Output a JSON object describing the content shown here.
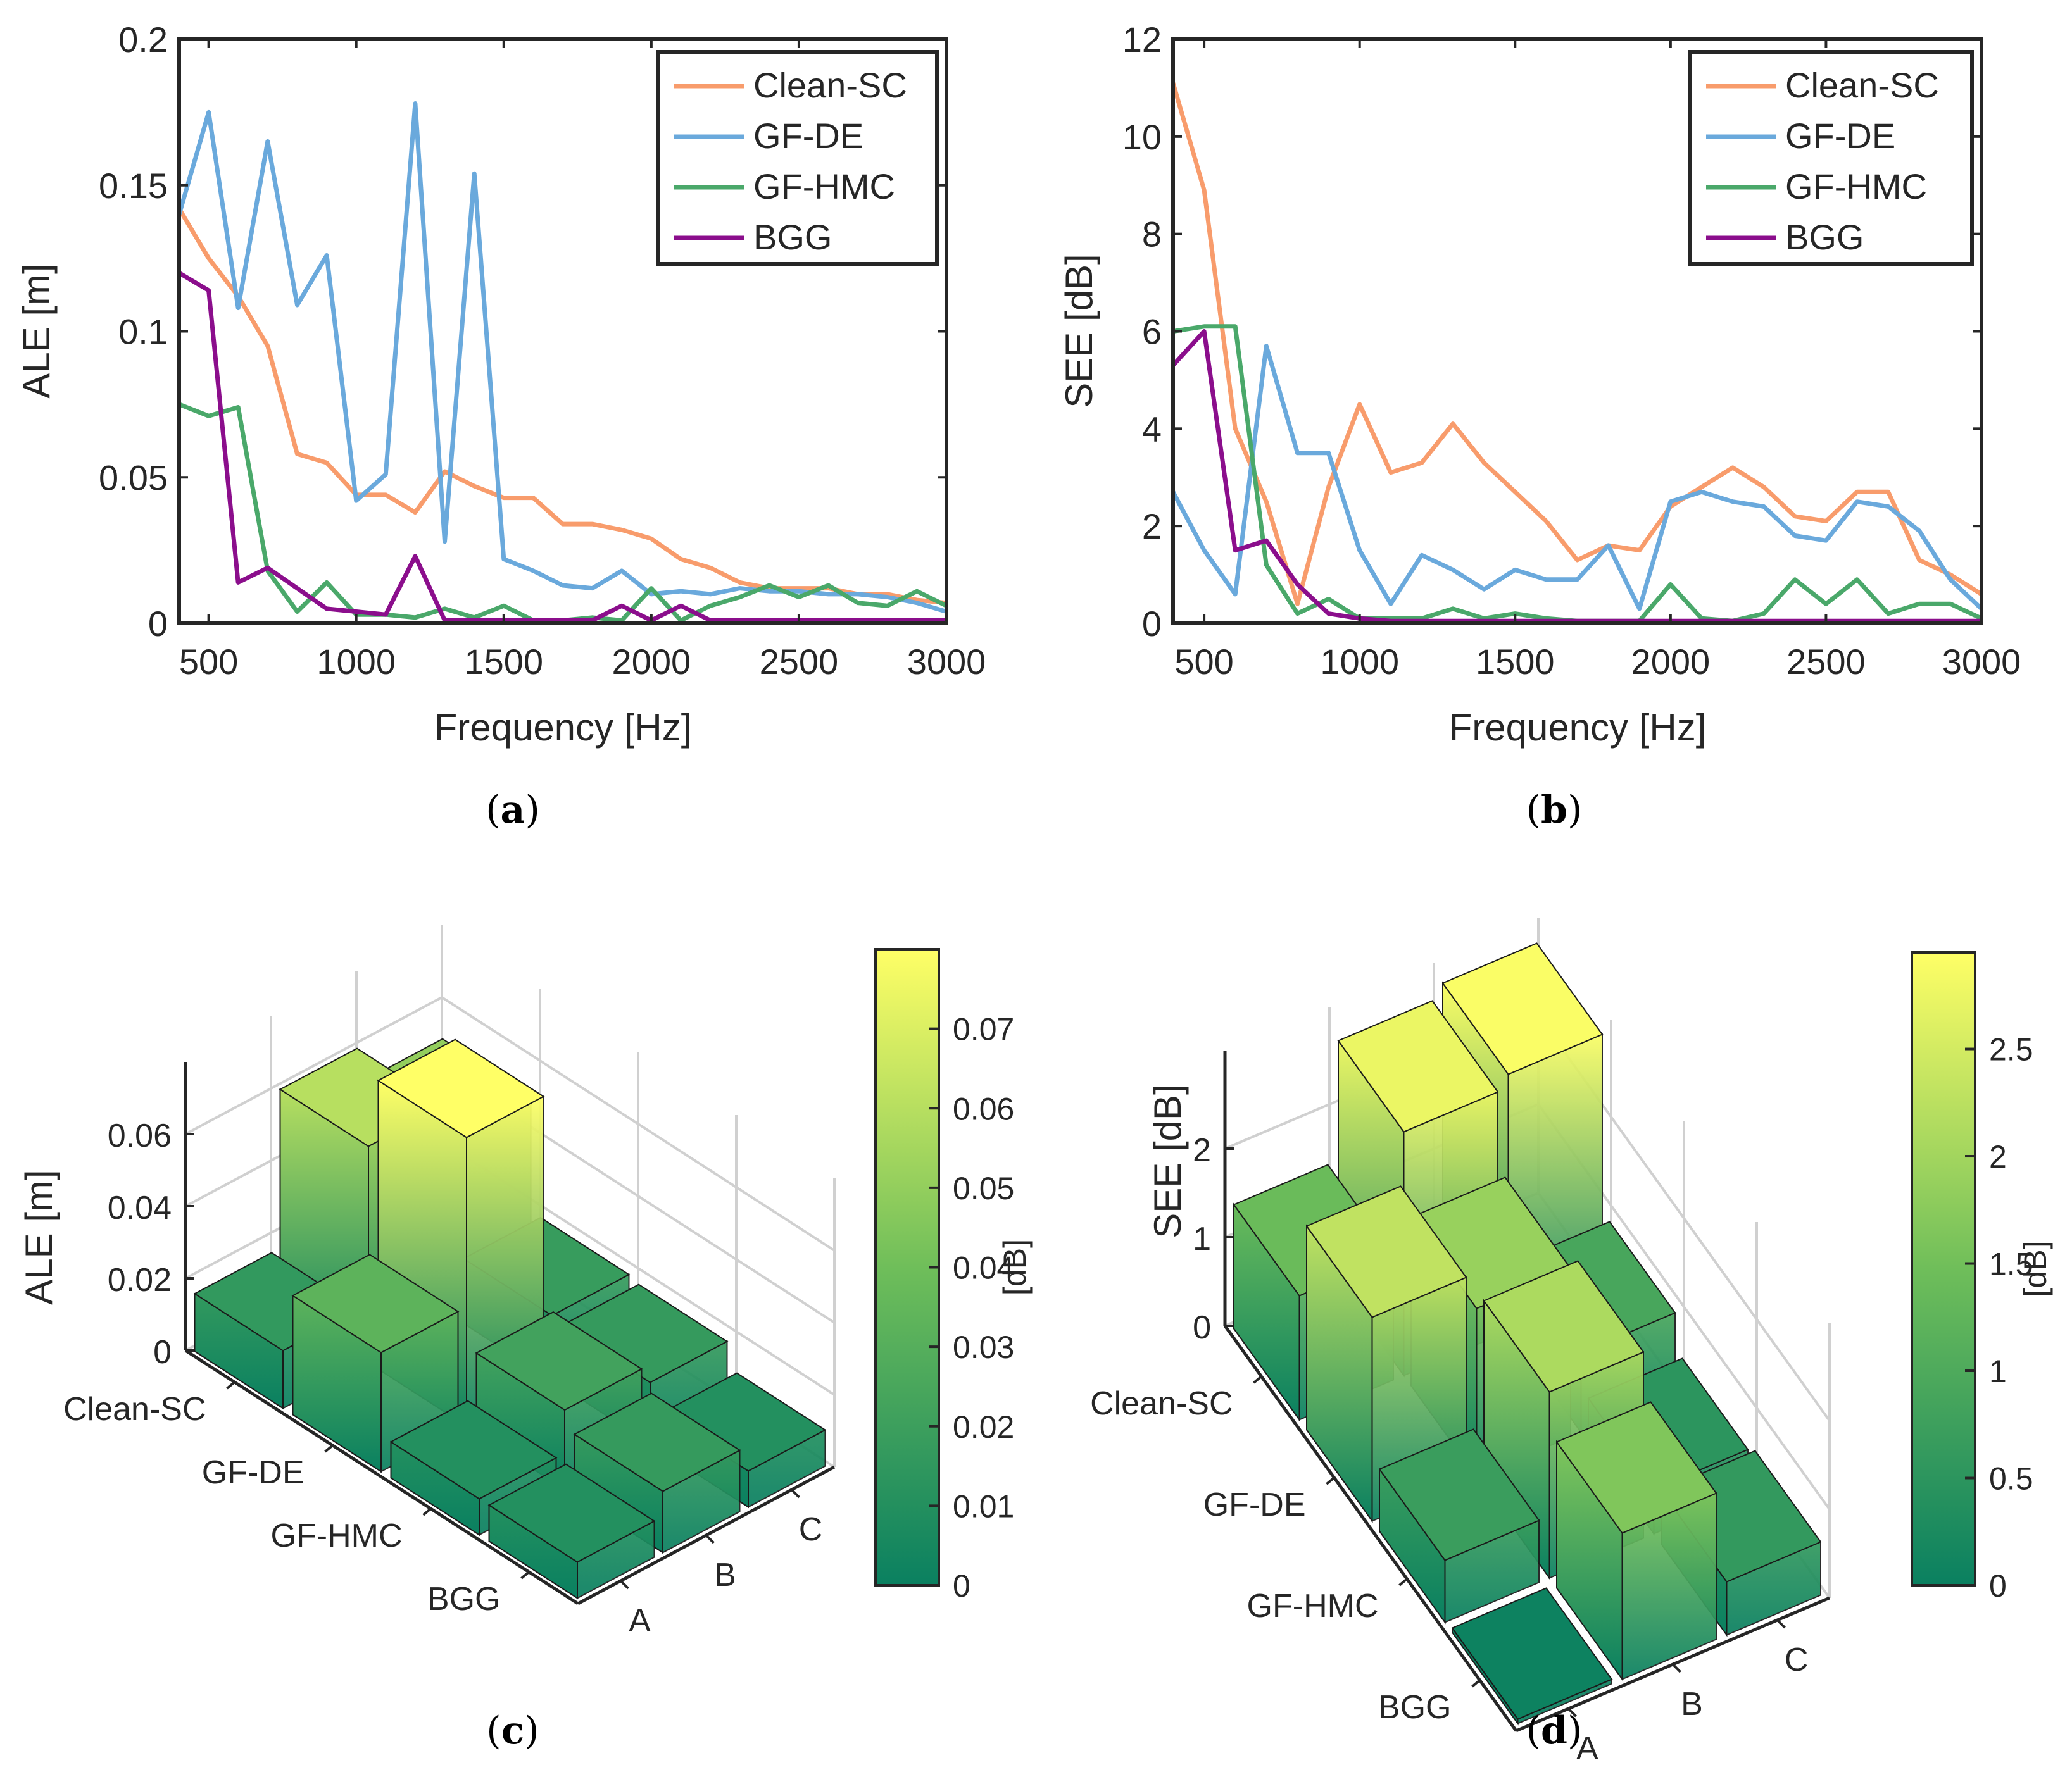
{
  "panels": {
    "a": {
      "caption_letter": "a"
    },
    "b": {
      "caption_letter": "b"
    },
    "c": {
      "caption_letter": "c"
    },
    "d": {
      "caption_letter": "d"
    }
  },
  "colors": {
    "Clean-SC": "#f89c6c",
    "GF-DE": "#6aa9dc",
    "GF-HMC": "#4aa86a",
    "BGG": "#8b0e8c",
    "colormap_low": "#0a8060",
    "colormap_mid": "#6fbe5a",
    "colormap_high": "#ffff66"
  },
  "chart_data": [
    {
      "id": "a",
      "type": "line",
      "ylabel": "ALE [m]",
      "xlabel": "Frequency [Hz]",
      "xlim": [
        400,
        3000
      ],
      "ylim": [
        0,
        0.2
      ],
      "xticks": [
        500,
        1000,
        1500,
        2000,
        2500,
        3000
      ],
      "yticks": [
        0,
        0.05,
        0.1,
        0.15,
        0.2
      ],
      "ytick_labels": [
        "0",
        "0.05",
        "0.1",
        "0.15",
        "0.2"
      ],
      "legend": "top-right",
      "x": [
        400,
        500,
        600,
        700,
        800,
        900,
        1000,
        1100,
        1200,
        1300,
        1400,
        1500,
        1600,
        1700,
        1800,
        1900,
        2000,
        2100,
        2200,
        2300,
        2400,
        2500,
        2600,
        2700,
        2800,
        2900,
        3000
      ],
      "series": [
        {
          "name": "Clean-SC",
          "values": [
            0.142,
            0.125,
            0.112,
            0.095,
            0.058,
            0.055,
            0.044,
            0.044,
            0.038,
            0.052,
            0.047,
            0.043,
            0.043,
            0.034,
            0.034,
            0.032,
            0.029,
            0.022,
            0.019,
            0.014,
            0.012,
            0.012,
            0.012,
            0.01,
            0.01,
            0.008,
            0.007
          ]
        },
        {
          "name": "GF-DE",
          "values": [
            0.14,
            0.175,
            0.108,
            0.165,
            0.109,
            0.126,
            0.042,
            0.051,
            0.178,
            0.028,
            0.154,
            0.022,
            0.018,
            0.013,
            0.012,
            0.018,
            0.01,
            0.011,
            0.01,
            0.012,
            0.011,
            0.011,
            0.01,
            0.01,
            0.009,
            0.007,
            0.004
          ]
        },
        {
          "name": "GF-HMC",
          "values": [
            0.075,
            0.071,
            0.074,
            0.018,
            0.004,
            0.014,
            0.003,
            0.003,
            0.002,
            0.005,
            0.002,
            0.006,
            0.001,
            0.001,
            0.002,
            0.001,
            0.012,
            0.001,
            0.006,
            0.009,
            0.013,
            0.009,
            0.013,
            0.007,
            0.006,
            0.011,
            0.006
          ]
        },
        {
          "name": "BGG",
          "values": [
            0.12,
            0.114,
            0.014,
            0.019,
            0.012,
            0.005,
            0.004,
            0.003,
            0.023,
            0.001,
            0.001,
            0.001,
            0.001,
            0.001,
            0.001,
            0.006,
            0.001,
            0.006,
            0.001,
            0.001,
            0.001,
            0.001,
            0.001,
            0.001,
            0.001,
            0.001,
            0.001
          ]
        }
      ]
    },
    {
      "id": "b",
      "type": "line",
      "ylabel": "SEE [dB]",
      "xlabel": "Frequency [Hz]",
      "xlim": [
        400,
        3000
      ],
      "ylim": [
        0,
        12
      ],
      "xticks": [
        500,
        1000,
        1500,
        2000,
        2500,
        3000
      ],
      "yticks": [
        0,
        2,
        4,
        6,
        8,
        10,
        12
      ],
      "ytick_labels": [
        "0",
        "2",
        "4",
        "6",
        "8",
        "10",
        "12"
      ],
      "legend": "top-right",
      "x": [
        400,
        500,
        600,
        700,
        800,
        900,
        1000,
        1100,
        1200,
        1300,
        1400,
        1500,
        1600,
        1700,
        1800,
        1900,
        2000,
        2100,
        2200,
        2300,
        2400,
        2500,
        2600,
        2700,
        2800,
        2900,
        3000
      ],
      "series": [
        {
          "name": "Clean-SC",
          "values": [
            11.1,
            8.9,
            4.0,
            2.5,
            0.4,
            2.8,
            4.5,
            3.1,
            3.3,
            4.1,
            3.3,
            2.7,
            2.1,
            1.3,
            1.6,
            1.5,
            2.4,
            2.8,
            3.2,
            2.8,
            2.2,
            2.1,
            2.7,
            2.7,
            1.3,
            1.0,
            0.6
          ]
        },
        {
          "name": "GF-DE",
          "values": [
            2.7,
            1.5,
            0.6,
            5.7,
            3.5,
            3.5,
            1.5,
            0.4,
            1.4,
            1.1,
            0.7,
            1.1,
            0.9,
            0.9,
            1.6,
            0.3,
            2.5,
            2.7,
            2.5,
            2.4,
            1.8,
            1.7,
            2.5,
            2.4,
            1.9,
            0.9,
            0.3
          ]
        },
        {
          "name": "GF-HMC",
          "values": [
            6.0,
            6.1,
            6.1,
            1.2,
            0.2,
            0.5,
            0.1,
            0.1,
            0.1,
            0.3,
            0.1,
            0.2,
            0.1,
            0.05,
            0.05,
            0.05,
            0.8,
            0.1,
            0.05,
            0.2,
            0.9,
            0.4,
            0.9,
            0.2,
            0.4,
            0.4,
            0.1
          ]
        },
        {
          "name": "BGG",
          "values": [
            5.3,
            6.0,
            1.5,
            1.7,
            0.8,
            0.2,
            0.1,
            0.05,
            0.05,
            0.05,
            0.05,
            0.05,
            0.05,
            0.05,
            0.05,
            0.05,
            0.05,
            0.05,
            0.05,
            0.05,
            0.05,
            0.05,
            0.05,
            0.05,
            0.05,
            0.05,
            0.05
          ]
        }
      ]
    },
    {
      "id": "c",
      "type": "bar3d",
      "zlabel": "ALE [m]",
      "methods": [
        "Clean-SC",
        "GF-DE",
        "GF-HMC",
        "BGG"
      ],
      "cases": [
        "A",
        "B",
        "C"
      ],
      "zticks": [
        0,
        0.02,
        0.04,
        0.06
      ],
      "ztick_labels": [
        "0",
        "0.02",
        "0.04",
        "0.06"
      ],
      "values": [
        [
          0.016,
          0.06,
          0.05
        ],
        [
          0.033,
          0.08,
          0.018
        ],
        [
          0.01,
          0.022,
          0.017
        ],
        [
          0.01,
          0.017,
          0.01
        ]
      ],
      "colorbar": {
        "label": "[dB]",
        "min": 0,
        "max": 0.08,
        "ticks": [
          0,
          0.01,
          0.02,
          0.03,
          0.04,
          0.05,
          0.06,
          0.07
        ],
        "tick_labels": [
          "0",
          "0.01",
          "0.02",
          "0.03",
          "0.04",
          "0.05",
          "0.06",
          "0.07"
        ]
      }
    },
    {
      "id": "d",
      "type": "bar3d",
      "zlabel": "SEE [dB]",
      "methods": [
        "Clean-SC",
        "GF-DE",
        "GF-HMC",
        "BGG"
      ],
      "cases": [
        "A",
        "B",
        "C"
      ],
      "zticks": [
        0,
        1,
        2
      ],
      "ztick_labels": [
        "0",
        "1",
        "2"
      ],
      "values": [
        [
          1.4,
          2.75,
          2.9
        ],
        [
          2.3,
          1.9,
          0.9
        ],
        [
          0.7,
          2.1,
          0.5
        ],
        [
          0.05,
          1.65,
          0.6
        ]
      ],
      "colorbar": {
        "label": "[dB]",
        "min": 0,
        "max": 2.95,
        "ticks": [
          0,
          0.5,
          1,
          1.5,
          2,
          2.5
        ],
        "tick_labels": [
          "0",
          "0.5",
          "1",
          "1.5",
          "2",
          "2.5"
        ]
      }
    }
  ]
}
